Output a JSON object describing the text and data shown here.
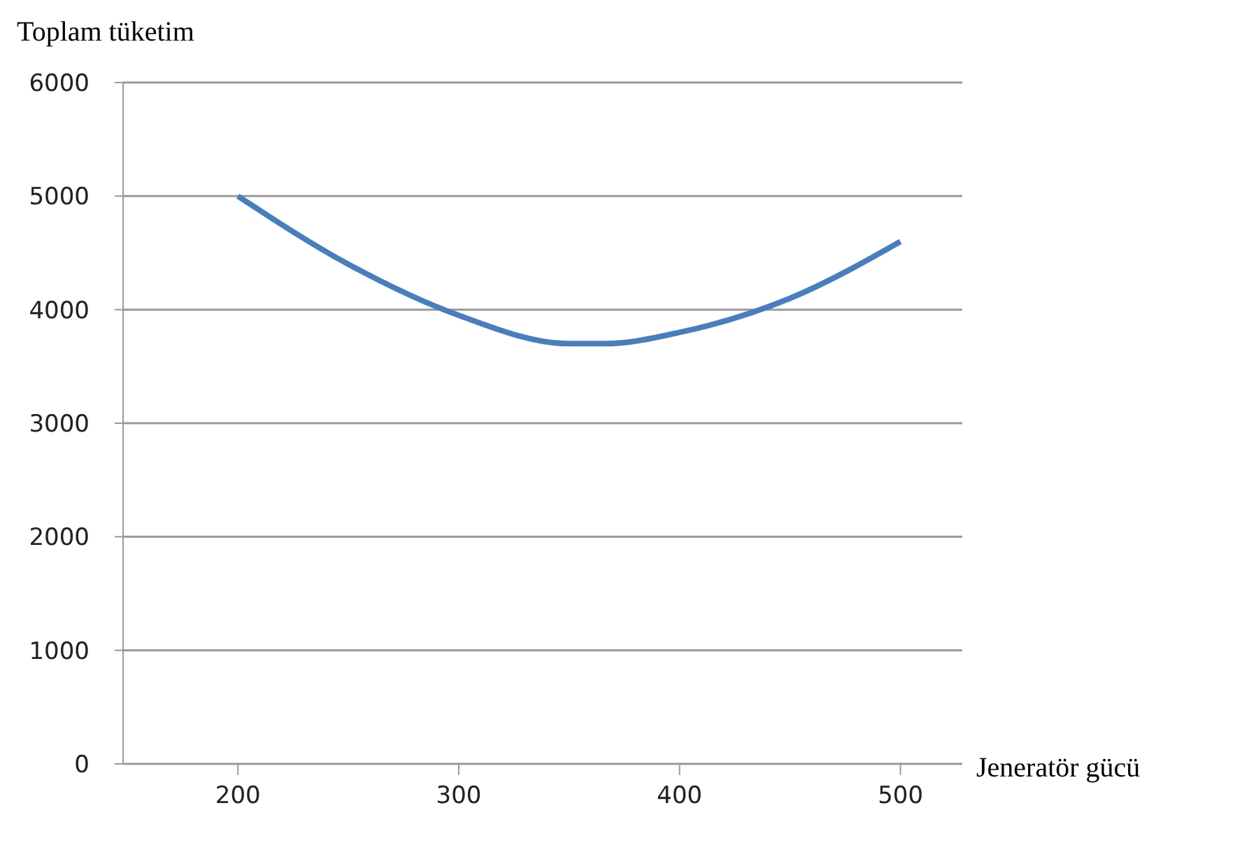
{
  "chart_data": {
    "type": "line",
    "xlabel": "Jeneratör gücü",
    "ylabel": "Toplam tüketim",
    "x": [
      200,
      250,
      300,
      350,
      366,
      400,
      450,
      500
    ],
    "series": [
      {
        "color": "#4a7ebb",
        "values": [
          5000,
          4400,
          3950,
          3700,
          3700,
          3800,
          4100,
          4600
        ]
      }
    ],
    "xlim": [
      148,
      528
    ],
    "xticks": [
      200,
      300,
      400,
      500
    ],
    "ylim": [
      0,
      6000
    ],
    "yticks": [
      0,
      1000,
      2000,
      3000,
      4000,
      5000,
      6000
    ],
    "grid": "y",
    "marker": "none"
  }
}
